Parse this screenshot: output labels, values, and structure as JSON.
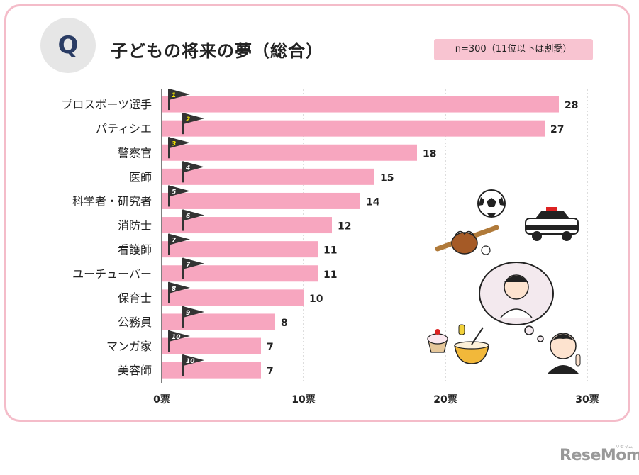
{
  "header": {
    "badge": "Q",
    "title": "子どもの将来の夢（総合）",
    "note": "n=300（11位以下は割愛）"
  },
  "chart_data": {
    "type": "bar",
    "orientation": "horizontal",
    "categories": [
      "プロスポーツ選手",
      "パティシエ",
      "警察官",
      "医師",
      "科学者・研究者",
      "消防士",
      "看護師",
      "ユーチューバー",
      "保育士",
      "公務員",
      "マンガ家",
      "美容師"
    ],
    "values": [
      28,
      27,
      18,
      15,
      14,
      12,
      11,
      11,
      10,
      8,
      7,
      7
    ],
    "ranks": [
      "1",
      "2",
      "3",
      "4",
      "5",
      "6",
      "7",
      "7",
      "8",
      "9",
      "10",
      "10"
    ],
    "xticks": [
      "0票",
      "10票",
      "20票",
      "30票"
    ],
    "xlim": [
      0,
      30
    ],
    "grid": true,
    "bar_color": "#f7a6bf",
    "flag_color": "#333333",
    "flag_rank_colors": [
      "#f5e600",
      "#f5e600",
      "#f5e600",
      "#ffffff",
      "#ffffff",
      "#ffffff",
      "#ffffff",
      "#ffffff",
      "#ffffff",
      "#ffffff",
      "#ffffff",
      "#ffffff"
    ]
  },
  "branding": {
    "logo": "ReseMom",
    "logo_small": "リセマム"
  },
  "colors": {
    "frame": "#f4bcc9",
    "note_bg": "#f8c4d1",
    "badge_bg": "#e6e6e6",
    "badge_text": "#2a3c64"
  }
}
